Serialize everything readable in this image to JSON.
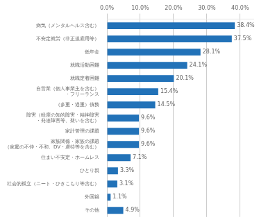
{
  "chart_data": {
    "type": "bar",
    "orientation": "horizontal",
    "categories": [
      "その他",
      "外国籍",
      "社会的孤立（ニート・ひきこもり等含む）",
      "ひとり親",
      "住まい不安定・ホームレス",
      "家族関係・家族の課題\n（家庭の不仲・不和、DV・虐待等を含む）",
      "家計管理の課題",
      "障害（軽度の知的障害・精神障害\n・発達障害等、疑いを含む）",
      "（多重・過重）債務",
      "自営業（個人事業主を含む）\n・フリーランス",
      "就職定着困難",
      "就職活動困難",
      "低年金",
      "不安定就労（非正規雇用等）",
      "病気（メンタルヘルス含む）"
    ],
    "values": [
      4.9,
      1.1,
      3.1,
      3.3,
      7.1,
      9.6,
      9.6,
      9.6,
      14.5,
      15.4,
      20.1,
      24.1,
      28.1,
      37.5,
      38.4
    ],
    "value_labels": [
      "4.9%",
      "1.1%",
      "3.1%",
      "3.3%",
      "7.1%",
      "9.6%",
      "9.6%",
      "9.6%",
      "14.5%",
      "15.4%",
      "20.1%",
      "24.1%",
      "28.1%",
      "37.5%",
      "38.4%"
    ],
    "data_labels": true,
    "color": "#2272b8",
    "xlim": [
      0,
      44
    ],
    "xticks": [
      {
        "value": 0,
        "label": "0.0%"
      },
      {
        "value": 10,
        "label": "10.0%"
      },
      {
        "value": 20,
        "label": "20.0%"
      },
      {
        "value": 30,
        "label": "30.0%"
      },
      {
        "value": 40,
        "label": "40.0%"
      }
    ],
    "grid": true
  }
}
